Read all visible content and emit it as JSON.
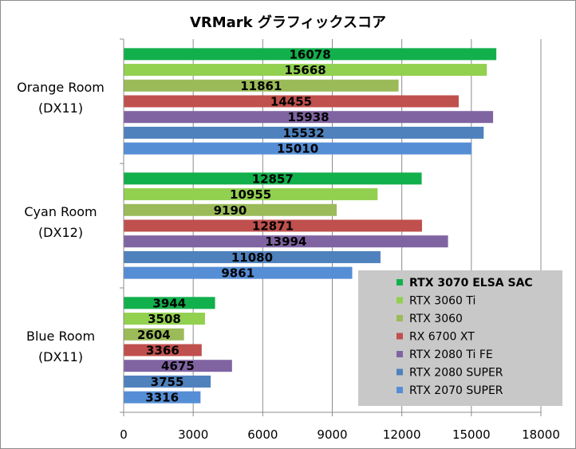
{
  "chart_data": {
    "type": "bar",
    "orientation": "horizontal",
    "title": "VRMark グラフィックスコア",
    "xlabel": "",
    "ylabel": "",
    "xlim": [
      0,
      18000
    ],
    "xticks": [
      "0",
      "3000",
      "6000",
      "9000",
      "12000",
      "15000",
      "18000"
    ],
    "grid": "vertical",
    "legend_position": "bottom-right",
    "categories": [
      [
        "Orange Room",
        "(DX11)"
      ],
      [
        "Cyan Room",
        "(DX12)"
      ],
      [
        "Blue Room",
        "(DX11)"
      ]
    ],
    "series": [
      {
        "name": "RTX 3070 ELSA SAC",
        "color": "#12b04c",
        "bold": true,
        "values": [
          16078,
          12857,
          3944
        ]
      },
      {
        "name": "RTX 3060 Ti",
        "color": "#92d050",
        "bold": false,
        "values": [
          15668,
          10955,
          3508
        ]
      },
      {
        "name": "RTX 3060",
        "color": "#9bbb59",
        "bold": false,
        "values": [
          11861,
          9190,
          2604
        ]
      },
      {
        "name": "RX 6700 XT",
        "color": "#c0504d",
        "bold": false,
        "values": [
          14455,
          12871,
          3366
        ]
      },
      {
        "name": "RTX 2080 Ti FE",
        "color": "#8064a2",
        "bold": false,
        "values": [
          15938,
          13994,
          4675
        ]
      },
      {
        "name": "RTX 2080 SUPER",
        "color": "#4f81bd",
        "bold": false,
        "values": [
          15532,
          11080,
          3755
        ]
      },
      {
        "name": "RTX 2070 SUPER",
        "color": "#558ed5",
        "bold": false,
        "values": [
          15010,
          9861,
          3316
        ]
      }
    ]
  }
}
